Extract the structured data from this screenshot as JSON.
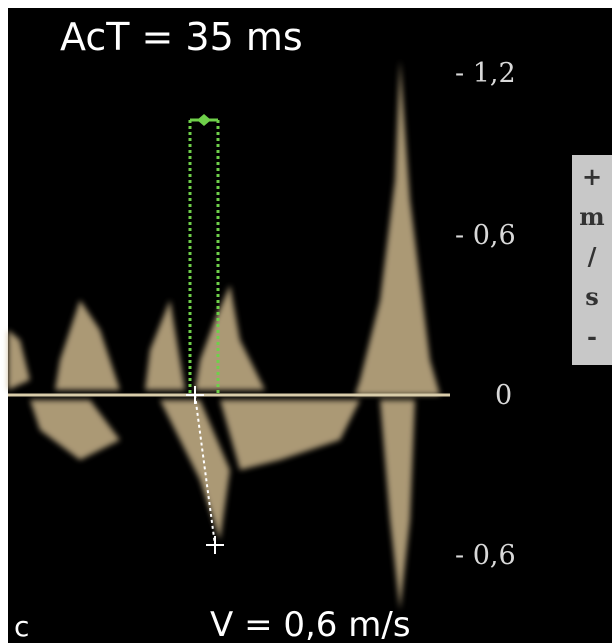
{
  "header": {
    "measurement": "AcT = 35 ms"
  },
  "scale": {
    "ticks": [
      "- 1,2",
      "- 0,6",
      "0",
      "- 0,6"
    ],
    "unit": [
      "+",
      "m",
      "/",
      "s",
      "-"
    ]
  },
  "panel_label": "c",
  "footer": {
    "velocity": "V = 0,6 m/s"
  }
}
